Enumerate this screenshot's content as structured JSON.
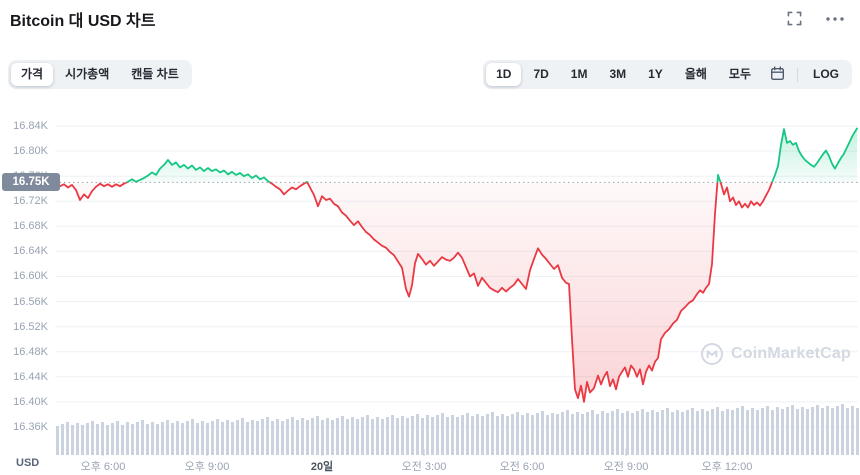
{
  "header": {
    "title": "Bitcoin 대 USD 차트",
    "icons": [
      "fullscreen-icon",
      "more-options-icon"
    ]
  },
  "controls": {
    "chart_tabs": [
      "가격",
      "시가총액",
      "캔들 차트"
    ],
    "chart_tabs_active_index": 0,
    "ranges": [
      "1D",
      "7D",
      "1M",
      "3M",
      "1Y",
      "올해",
      "모두"
    ],
    "ranges_active_index": 0,
    "calendar_icon": "calendar-icon",
    "log_label": "LOG"
  },
  "watermark": {
    "text": "CoinMarketCap",
    "logo": "coinmarketcap-logo-icon"
  },
  "chart_data": {
    "type": "area",
    "title": "Bitcoin 대 USD 차트",
    "legend": "none",
    "grid": "horizontal",
    "baseline": {
      "price": 16.75,
      "label": "16.75K",
      "style": "dotted"
    },
    "y_axis": {
      "unit": "USD",
      "tick_labels": [
        "16.84K",
        "16.80K",
        "16.76K",
        "16.72K",
        "16.68K",
        "16.64K",
        "16.60K",
        "16.56K",
        "16.52K",
        "16.48K",
        "16.44K",
        "16.40K",
        "16.36K"
      ],
      "tick_values": [
        16.84,
        16.8,
        16.76,
        16.72,
        16.68,
        16.64,
        16.6,
        16.56,
        16.52,
        16.48,
        16.44,
        16.4,
        16.36
      ],
      "ylim": [
        16.34,
        16.86
      ]
    },
    "x_axis": {
      "tick_labels": [
        "오후 6:00",
        "오후 9:00",
        "20일",
        "오전 3:00",
        "오전 6:00",
        "오전 9:00",
        "오후 12:00"
      ],
      "tick_x": [
        103,
        207,
        322,
        424,
        522,
        626,
        727
      ],
      "bold_index": 2
    },
    "colors": {
      "up": "#16c784",
      "down": "#ea3943",
      "volume": "#ccd3e0",
      "grid": "#eef1f6",
      "baseline": "#9aa4b4"
    },
    "series": {
      "name": "BTC/USD price (K USD)",
      "points": [
        [
          55,
          16.748
        ],
        [
          60,
          16.744
        ],
        [
          64,
          16.747
        ],
        [
          68,
          16.742
        ],
        [
          72,
          16.746
        ],
        [
          76,
          16.738
        ],
        [
          80,
          16.722
        ],
        [
          84,
          16.731
        ],
        [
          88,
          16.725
        ],
        [
          92,
          16.736
        ],
        [
          96,
          16.743
        ],
        [
          100,
          16.748
        ],
        [
          104,
          16.744
        ],
        [
          108,
          16.747
        ],
        [
          112,
          16.743
        ],
        [
          116,
          16.747
        ],
        [
          120,
          16.744
        ],
        [
          124,
          16.748
        ],
        [
          128,
          16.751
        ],
        [
          132,
          16.755
        ],
        [
          136,
          16.751
        ],
        [
          140,
          16.754
        ],
        [
          144,
          16.757
        ],
        [
          148,
          16.761
        ],
        [
          152,
          16.766
        ],
        [
          156,
          16.762
        ],
        [
          160,
          16.772
        ],
        [
          164,
          16.778
        ],
        [
          168,
          16.786
        ],
        [
          172,
          16.778
        ],
        [
          176,
          16.782
        ],
        [
          180,
          16.774
        ],
        [
          184,
          16.778
        ],
        [
          188,
          16.772
        ],
        [
          192,
          16.777
        ],
        [
          196,
          16.77
        ],
        [
          200,
          16.774
        ],
        [
          204,
          16.768
        ],
        [
          208,
          16.773
        ],
        [
          212,
          16.768
        ],
        [
          216,
          16.771
        ],
        [
          220,
          16.766
        ],
        [
          224,
          16.769
        ],
        [
          228,
          16.763
        ],
        [
          232,
          16.767
        ],
        [
          236,
          16.762
        ],
        [
          240,
          16.765
        ],
        [
          244,
          16.76
        ],
        [
          248,
          16.763
        ],
        [
          252,
          16.757
        ],
        [
          256,
          16.761
        ],
        [
          260,
          16.755
        ],
        [
          264,
          16.758
        ],
        [
          268,
          16.752
        ],
        [
          272,
          16.748
        ],
        [
          276,
          16.743
        ],
        [
          280,
          16.739
        ],
        [
          284,
          16.731
        ],
        [
          288,
          16.737
        ],
        [
          292,
          16.742
        ],
        [
          296,
          16.739
        ],
        [
          300,
          16.744
        ],
        [
          304,
          16.748
        ],
        [
          307,
          16.751
        ],
        [
          310,
          16.742
        ],
        [
          314,
          16.73
        ],
        [
          318,
          16.712
        ],
        [
          322,
          16.728
        ],
        [
          326,
          16.722
        ],
        [
          330,
          16.724
        ],
        [
          334,
          16.716
        ],
        [
          338,
          16.712
        ],
        [
          342,
          16.702
        ],
        [
          346,
          16.697
        ],
        [
          350,
          16.689
        ],
        [
          354,
          16.682
        ],
        [
          358,
          16.688
        ],
        [
          362,
          16.679
        ],
        [
          366,
          16.671
        ],
        [
          370,
          16.666
        ],
        [
          374,
          16.659
        ],
        [
          378,
          16.654
        ],
        [
          382,
          16.649
        ],
        [
          386,
          16.646
        ],
        [
          390,
          16.639
        ],
        [
          394,
          16.634
        ],
        [
          398,
          16.624
        ],
        [
          402,
          16.614
        ],
        [
          406,
          16.58
        ],
        [
          409,
          16.568
        ],
        [
          412,
          16.586
        ],
        [
          415,
          16.621
        ],
        [
          418,
          16.636
        ],
        [
          422,
          16.628
        ],
        [
          426,
          16.619
        ],
        [
          430,
          16.625
        ],
        [
          434,
          16.617
        ],
        [
          438,
          16.624
        ],
        [
          442,
          16.631
        ],
        [
          446,
          16.627
        ],
        [
          450,
          16.625
        ],
        [
          454,
          16.63
        ],
        [
          458,
          16.638
        ],
        [
          462,
          16.63
        ],
        [
          466,
          16.615
        ],
        [
          470,
          16.6
        ],
        [
          474,
          16.605
        ],
        [
          478,
          16.585
        ],
        [
          482,
          16.598
        ],
        [
          486,
          16.59
        ],
        [
          490,
          16.582
        ],
        [
          494,
          16.578
        ],
        [
          498,
          16.575
        ],
        [
          502,
          16.582
        ],
        [
          506,
          16.576
        ],
        [
          510,
          16.582
        ],
        [
          514,
          16.587
        ],
        [
          518,
          16.596
        ],
        [
          522,
          16.588
        ],
        [
          526,
          16.58
        ],
        [
          530,
          16.61
        ],
        [
          534,
          16.628
        ],
        [
          538,
          16.645
        ],
        [
          542,
          16.635
        ],
        [
          546,
          16.628
        ],
        [
          550,
          16.62
        ],
        [
          554,
          16.612
        ],
        [
          558,
          16.618
        ],
        [
          562,
          16.598
        ],
        [
          566,
          16.59
        ],
        [
          569,
          16.588
        ],
        [
          572,
          16.5
        ],
        [
          575,
          16.42
        ],
        [
          578,
          16.406
        ],
        [
          581,
          16.426
        ],
        [
          584,
          16.4
        ],
        [
          587,
          16.432
        ],
        [
          590,
          16.415
        ],
        [
          594,
          16.422
        ],
        [
          598,
          16.442
        ],
        [
          601,
          16.428
        ],
        [
          604,
          16.44
        ],
        [
          607,
          16.448
        ],
        [
          610,
          16.425
        ],
        [
          613,
          16.436
        ],
        [
          616,
          16.42
        ],
        [
          619,
          16.44
        ],
        [
          622,
          16.448
        ],
        [
          625,
          16.455
        ],
        [
          628,
          16.44
        ],
        [
          631,
          16.458
        ],
        [
          634,
          16.452
        ],
        [
          637,
          16.44
        ],
        [
          640,
          16.452
        ],
        [
          643,
          16.428
        ],
        [
          646,
          16.448
        ],
        [
          649,
          16.458
        ],
        [
          652,
          16.45
        ],
        [
          655,
          16.464
        ],
        [
          658,
          16.47
        ],
        [
          661,
          16.5
        ],
        [
          665,
          16.51
        ],
        [
          669,
          16.516
        ],
        [
          673,
          16.525
        ],
        [
          677,
          16.531
        ],
        [
          681,
          16.545
        ],
        [
          685,
          16.551
        ],
        [
          689,
          16.558
        ],
        [
          693,
          16.562
        ],
        [
          697,
          16.572
        ],
        [
          700,
          16.578
        ],
        [
          703,
          16.574
        ],
        [
          706,
          16.582
        ],
        [
          709,
          16.588
        ],
        [
          712,
          16.62
        ],
        [
          715,
          16.7
        ],
        [
          718,
          16.762
        ],
        [
          721,
          16.748
        ],
        [
          724,
          16.731
        ],
        [
          727,
          16.742
        ],
        [
          730,
          16.72
        ],
        [
          733,
          16.726
        ],
        [
          736,
          16.714
        ],
        [
          739,
          16.72
        ],
        [
          742,
          16.71
        ],
        [
          745,
          16.716
        ],
        [
          748,
          16.71
        ],
        [
          751,
          16.72
        ],
        [
          754,
          16.714
        ],
        [
          757,
          16.718
        ],
        [
          760,
          16.713
        ],
        [
          763,
          16.72
        ],
        [
          766,
          16.729
        ],
        [
          769,
          16.738
        ],
        [
          772,
          16.75
        ],
        [
          775,
          16.762
        ],
        [
          778,
          16.776
        ],
        [
          781,
          16.81
        ],
        [
          784,
          16.835
        ],
        [
          787,
          16.813
        ],
        [
          790,
          16.816
        ],
        [
          793,
          16.81
        ],
        [
          796,
          16.813
        ],
        [
          799,
          16.8
        ],
        [
          802,
          16.792
        ],
        [
          805,
          16.786
        ],
        [
          808,
          16.782
        ],
        [
          811,
          16.778
        ],
        [
          814,
          16.775
        ],
        [
          817,
          16.781
        ],
        [
          820,
          16.788
        ],
        [
          823,
          16.795
        ],
        [
          826,
          16.801
        ],
        [
          829,
          16.792
        ],
        [
          832,
          16.78
        ],
        [
          835,
          16.772
        ],
        [
          838,
          16.781
        ],
        [
          841,
          16.789
        ],
        [
          844,
          16.796
        ],
        [
          847,
          16.806
        ],
        [
          850,
          16.816
        ],
        [
          853,
          16.826
        ],
        [
          857,
          16.836
        ]
      ]
    },
    "volume": {
      "heights": [
        29,
        31,
        33,
        30,
        32,
        30,
        32,
        34,
        31,
        33,
        30,
        32,
        34,
        30,
        33,
        31,
        33,
        35,
        31,
        33,
        31,
        33,
        35,
        32,
        34,
        32,
        34,
        36,
        32,
        34,
        32,
        34,
        36,
        33,
        35,
        33,
        35,
        37,
        33,
        35,
        34,
        36,
        38,
        34,
        36,
        34,
        36,
        38,
        35,
        37,
        35,
        37,
        39,
        35,
        37,
        35,
        37,
        39,
        36,
        38,
        36,
        38,
        40,
        36,
        38,
        36,
        38,
        40,
        37,
        39,
        37,
        39,
        41,
        37,
        40,
        38,
        40,
        42,
        38,
        40,
        38,
        40,
        42,
        39,
        41,
        39,
        41,
        43,
        39,
        41,
        39,
        41,
        43,
        40,
        42,
        40,
        42,
        44,
        40,
        42,
        41,
        43,
        45,
        41,
        43,
        41,
        43,
        45,
        41,
        44,
        42,
        44,
        46,
        42,
        44,
        42,
        44,
        46,
        43,
        45,
        43,
        45,
        47,
        43,
        45,
        43,
        45,
        47,
        44,
        46,
        44,
        46,
        48,
        44,
        46,
        45,
        47,
        49,
        45,
        47,
        45,
        47,
        49,
        45,
        48,
        46,
        48,
        50,
        46,
        48,
        46,
        48,
        50,
        47,
        49,
        47,
        49,
        51,
        47,
        49,
        47
      ]
    }
  }
}
